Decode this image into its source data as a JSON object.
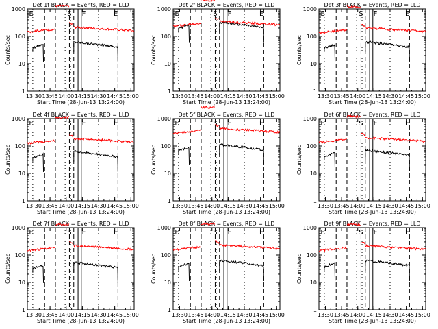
{
  "chart_data": [
    {
      "type": "line",
      "title": "Det 1f BLACK = Events, RED = LLD",
      "xlabel": "Start Time (28-Jun-13 13:24:00)",
      "ylabel": "Counts/sec",
      "x_ticks": [
        "13:30",
        "13:45",
        "14:00",
        "14:15",
        "14:30",
        "14:45",
        "15:00"
      ],
      "y_ticks": [
        "1",
        "10",
        "100",
        "1000"
      ],
      "y_scale": "log",
      "ylim": [
        1,
        1000
      ],
      "zone_labels": [
        "E",
        "S",
        "F",
        "E"
      ],
      "series": [
        {
          "name": "Events",
          "color": "#000000",
          "level": 45
        },
        {
          "name": "LLD",
          "color": "#ff0000",
          "level": 160
        }
      ]
    },
    {
      "type": "line",
      "title": "Det 2f BLACK = Events, RED = LLD",
      "xlabel": "Start Time (28-Jun-13 13:24:00)",
      "ylabel": "Counts/sec",
      "x_ticks": [
        "13:30",
        "13:45",
        "14:00",
        "14:15",
        "14:30",
        "14:45",
        "15:00"
      ],
      "y_ticks": [
        "1",
        "10",
        "100",
        "1000"
      ],
      "y_scale": "log",
      "ylim": [
        1,
        1000
      ],
      "zone_labels": [
        "E",
        "S",
        "F",
        "E"
      ],
      "series": [
        {
          "name": "Events",
          "color": "#000000",
          "level": 230
        },
        {
          "name": "LLD",
          "color": "#ff0000",
          "level": 260
        }
      ]
    },
    {
      "type": "line",
      "title": "Det 3f BLACK = Events, RED = LLD",
      "xlabel": "Start Time (28-Jun-13 13:24:00)",
      "ylabel": "Counts/sec",
      "x_ticks": [
        "13:30",
        "13:45",
        "14:00",
        "14:15",
        "14:30",
        "14:45",
        "15:00"
      ],
      "y_ticks": [
        "1",
        "10",
        "100",
        "1000"
      ],
      "y_scale": "log",
      "ylim": [
        1,
        1000
      ],
      "zone_labels": [
        "E",
        "S",
        "F",
        "E"
      ],
      "series": [
        {
          "name": "Events",
          "color": "#000000",
          "level": 45
        },
        {
          "name": "LLD",
          "color": "#ff0000",
          "level": 150
        }
      ]
    },
    {
      "type": "line",
      "title": "Det 4f BLACK = Events, RED = LLD",
      "xlabel": "Start Time (28-Jun-13 13:24:00)",
      "ylabel": "Counts/sec",
      "x_ticks": [
        "13:30",
        "13:45",
        "14:00",
        "14:15",
        "14:30",
        "14:45",
        "15:00"
      ],
      "y_ticks": [
        "1",
        "10",
        "100",
        "1000"
      ],
      "y_scale": "log",
      "ylim": [
        1,
        1000
      ],
      "zone_labels": [
        "E",
        "S",
        "F",
        "E"
      ],
      "series": [
        {
          "name": "Events",
          "color": "#000000",
          "level": 45
        },
        {
          "name": "LLD",
          "color": "#ff0000",
          "level": 140
        }
      ]
    },
    {
      "type": "line",
      "title": "Det 5f BLACK = Events, RED = LLD",
      "xlabel": "Start Time (28-Jun-13 13:24:00)",
      "ylabel": "Counts/sec",
      "x_ticks": [
        "13:30",
        "13:45",
        "14:00",
        "14:15",
        "14:30",
        "14:45",
        "15:00"
      ],
      "y_ticks": [
        "1",
        "10",
        "100",
        "1000"
      ],
      "y_scale": "log",
      "ylim": [
        1,
        1000
      ],
      "zone_labels": [
        "E",
        "S",
        "F",
        "E"
      ],
      "series": [
        {
          "name": "Events",
          "color": "#000000",
          "level": 80
        },
        {
          "name": "LLD",
          "color": "#ff0000",
          "level": 320
        }
      ]
    },
    {
      "type": "line",
      "title": "Det 6f BLACK = Events, RED = LLD",
      "xlabel": "Start Time (28-Jun-13 13:24:00)",
      "ylabel": "Counts/sec",
      "x_ticks": [
        "13:30",
        "13:45",
        "14:00",
        "14:15",
        "14:30",
        "14:45",
        "15:00"
      ],
      "y_ticks": [
        "1",
        "10",
        "100",
        "1000"
      ],
      "y_scale": "log",
      "ylim": [
        1,
        1000
      ],
      "zone_labels": [
        "E",
        "S",
        "F",
        "E"
      ],
      "series": [
        {
          "name": "Events",
          "color": "#000000",
          "level": 50
        },
        {
          "name": "LLD",
          "color": "#ff0000",
          "level": 150
        }
      ]
    },
    {
      "type": "line",
      "title": "Det 7f BLACK = Events, RED = LLD",
      "xlabel": "Start Time (28-Jun-13 13:24:00)",
      "ylabel": "Counts/sec",
      "x_ticks": [
        "13:30",
        "13:45",
        "14:00",
        "14:15",
        "14:30",
        "14:45",
        "15:00"
      ],
      "y_ticks": [
        "1",
        "10",
        "100",
        "1000"
      ],
      "y_scale": "log",
      "ylim": [
        1,
        1000
      ],
      "zone_labels": [
        "E",
        "S",
        "F",
        "E"
      ],
      "series": [
        {
          "name": "Events",
          "color": "#000000",
          "level": 38
        },
        {
          "name": "LLD",
          "color": "#ff0000",
          "level": 160
        }
      ]
    },
    {
      "type": "line",
      "title": "Det 8f BLACK = Events, RED = LLD",
      "xlabel": "Start Time (28-Jun-13 13:24:00)",
      "ylabel": "Counts/sec",
      "x_ticks": [
        "13:30",
        "13:45",
        "14:00",
        "14:15",
        "14:30",
        "14:45",
        "15:00"
      ],
      "y_ticks": [
        "1",
        "10",
        "100",
        "1000"
      ],
      "y_scale": "log",
      "ylim": [
        1,
        1000
      ],
      "zone_labels": [
        "E",
        "S",
        "F",
        "E"
      ],
      "series": [
        {
          "name": "Events",
          "color": "#000000",
          "level": 45
        },
        {
          "name": "LLD",
          "color": "#ff0000",
          "level": 170
        }
      ]
    },
    {
      "type": "line",
      "title": "Det 9f BLACK = Events, RED = LLD",
      "xlabel": "Start Time (28-Jun-13 13:24:00)",
      "ylabel": "Counts/sec",
      "x_ticks": [
        "13:30",
        "13:45",
        "14:00",
        "14:15",
        "14:30",
        "14:45",
        "15:00"
      ],
      "y_ticks": [
        "1",
        "10",
        "100",
        "1000"
      ],
      "y_scale": "log",
      "ylim": [
        1,
        1000
      ],
      "zone_labels": [
        "E",
        "S",
        "F",
        "E"
      ],
      "series": [
        {
          "name": "Events",
          "color": "#000000",
          "level": 45
        },
        {
          "name": "LLD",
          "color": "#ff0000",
          "level": 160
        }
      ]
    }
  ]
}
